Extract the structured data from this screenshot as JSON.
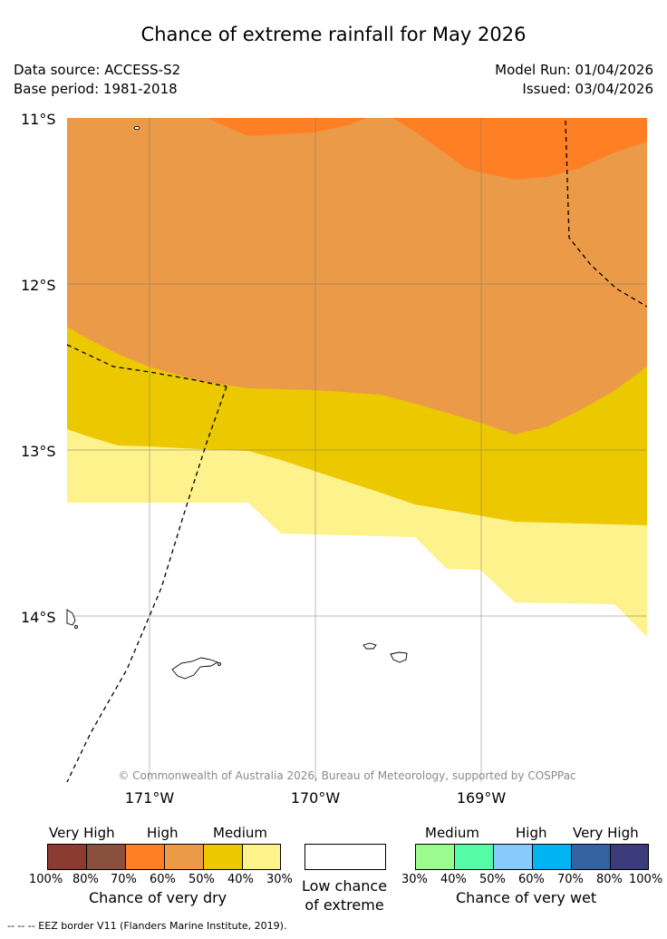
{
  "title": "Chance of extreme rainfall for May 2026",
  "meta": {
    "data_source": "Data source: ACCESS-S2",
    "base_period": "Base period: 1981-2018",
    "model_run": "Model Run: 01/04/2026",
    "issued": "Issued: 03/04/2026"
  },
  "map": {
    "lat_labels": [
      "11°S",
      "12°S",
      "13°S",
      "14°S"
    ],
    "lon_labels": [
      "171°W",
      "170°W",
      "169°W"
    ],
    "copyright": "© Commonwealth of Australia 2026, Bureau of Meteorology, supported by COSPPac",
    "colors": {
      "dry_70": "#ff7f24",
      "dry_60": "#eb9a48",
      "dry_50": "#ecc800",
      "dry_40": "#fdf28b",
      "low": "#ffffff"
    }
  },
  "legend": {
    "dry": {
      "categories": [
        "Very High",
        "High",
        "Medium"
      ],
      "ticks": [
        "100%",
        "80%",
        "70%",
        "60%",
        "50%",
        "40%",
        "30%"
      ],
      "colors": [
        "#8c3b30",
        "#8a503e",
        "#ff7f24",
        "#eb9a48",
        "#ecc800",
        "#fdf28b"
      ],
      "caption": "Chance of very dry"
    },
    "low": {
      "line1": "Low chance",
      "line2": "of extreme"
    },
    "wet": {
      "categories": [
        "Medium",
        "High",
        "Very High"
      ],
      "ticks": [
        "30%",
        "40%",
        "50%",
        "60%",
        "70%",
        "80%",
        "100%"
      ],
      "colors": [
        "#9bfb8f",
        "#54fca5",
        "#87cbfb",
        "#00b3f1",
        "#3563a2",
        "#3c3b7c"
      ],
      "caption": "Chance of very wet"
    }
  },
  "eez_note": "--  --  -- EEZ border V11 (Flanders Marine Institute, 2019)."
}
